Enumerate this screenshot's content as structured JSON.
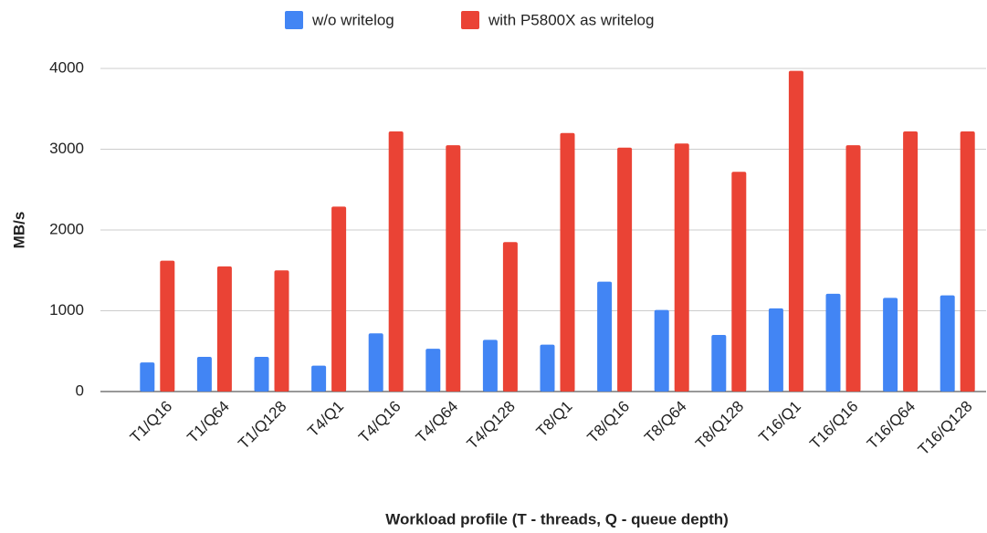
{
  "chart_data": {
    "type": "bar",
    "x_label": "Workload profile (T - threads, Q - queue depth)",
    "y_label": "MB/s",
    "categories": [
      "T1/Q16",
      "T1/Q64",
      "T1/Q128",
      "T4/Q1",
      "T4/Q16",
      "T4/Q64",
      "T4/Q128",
      "T8/Q1",
      "T8/Q16",
      "T8/Q64",
      "T8/Q128",
      "T16/Q1",
      "T16/Q16",
      "T16/Q64",
      "T16/Q128"
    ],
    "series": [
      {
        "name": "w/o writelog",
        "color": "#4285f4",
        "values": [
          360,
          430,
          430,
          320,
          720,
          530,
          640,
          580,
          1360,
          1010,
          700,
          1030,
          1210,
          1160,
          1190
        ]
      },
      {
        "name": "with P5800X as writelog",
        "color": "#ea4335",
        "values": [
          1620,
          1550,
          1500,
          2290,
          3220,
          3050,
          1850,
          3200,
          3020,
          3070,
          2720,
          3970,
          3050,
          3220,
          3220
        ]
      }
    ],
    "ylim": [
      0,
      4000
    ],
    "yticks": [
      0,
      1000,
      2000,
      3000,
      4000
    ],
    "grid": true,
    "legend": "top"
  }
}
